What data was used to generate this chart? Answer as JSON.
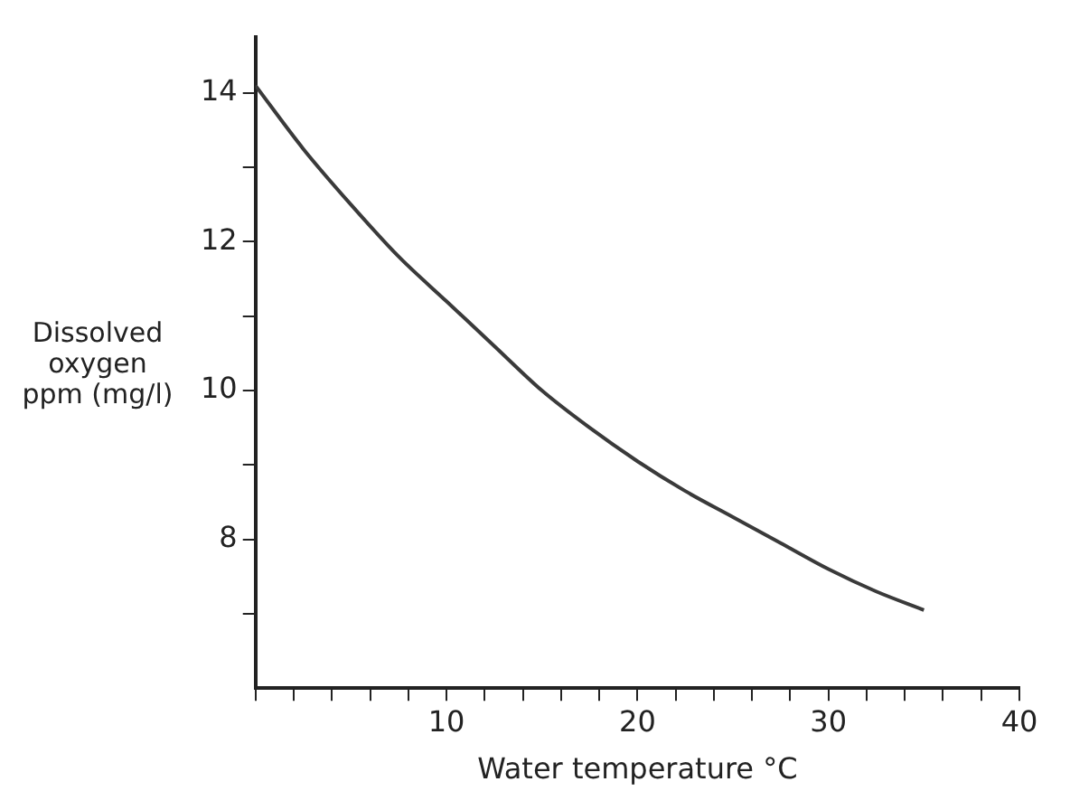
{
  "chart_data": {
    "type": "line",
    "xlabel": "Water temperature °C",
    "ylabel": "Dissolved oxygen ppm (mg/l)",
    "x": [
      0,
      2.5,
      5,
      7.5,
      10,
      12.5,
      15,
      17.5,
      20,
      22.5,
      25,
      27.5,
      30,
      32.5,
      35
    ],
    "series": [
      {
        "color": "#3a3a3a",
        "values": [
          14.1,
          13.25,
          12.5,
          11.8,
          11.2,
          10.6,
          10.0,
          9.5,
          9.05,
          8.65,
          8.3,
          7.95,
          7.6,
          7.3,
          7.05
        ]
      }
    ],
    "xlim": [
      0,
      40
    ],
    "ylim": [
      6,
      14.75
    ],
    "xticks": [
      {
        "value": 0,
        "label": null
      },
      {
        "value": 2,
        "label": null
      },
      {
        "value": 4,
        "label": null
      },
      {
        "value": 6,
        "label": null
      },
      {
        "value": 8,
        "label": null
      },
      10,
      {
        "value": 12,
        "label": null
      },
      {
        "value": 14,
        "label": null
      },
      {
        "value": 16,
        "label": null
      },
      {
        "value": 18,
        "label": null
      },
      20,
      {
        "value": 22,
        "label": null
      },
      {
        "value": 24,
        "label": null
      },
      {
        "value": 26,
        "label": null
      },
      {
        "value": 28,
        "label": null
      },
      30,
      {
        "value": 32,
        "label": null
      },
      {
        "value": 34,
        "label": null
      },
      {
        "value": 36,
        "label": null
      },
      {
        "value": 38,
        "label": null
      },
      40
    ],
    "yticks": [
      {
        "value": 7,
        "label": null
      },
      8,
      {
        "value": 9,
        "label": null
      },
      10,
      {
        "value": 11,
        "label": null
      },
      12,
      {
        "value": 13,
        "label": null
      },
      14
    ],
    "grid": false,
    "marker": "none",
    "line_style": "solid"
  }
}
